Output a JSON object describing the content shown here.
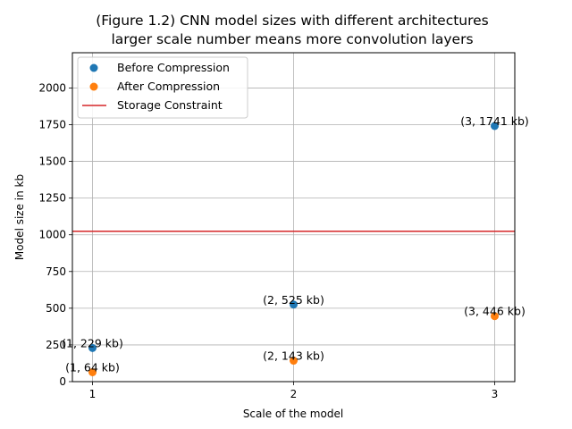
{
  "chart_data": {
    "type": "scatter",
    "title_line1": "(Figure 1.2) CNN model sizes with different architectures",
    "title_line2": "larger scale number means more convolution layers",
    "xlabel": "Scale of the model",
    "ylabel": "Model size in kb",
    "xlim": [
      0.9,
      3.1
    ],
    "ylim": [
      0,
      2240
    ],
    "xticks": [
      1,
      2,
      3
    ],
    "yticks": [
      0,
      250,
      500,
      750,
      1000,
      1250,
      1500,
      1750,
      2000
    ],
    "grid": true,
    "legend_position": "top-left",
    "series": [
      {
        "name": "Before Compression",
        "color": "#1f77b4",
        "x": [
          1,
          2,
          3
        ],
        "y": [
          229,
          525,
          1741
        ],
        "labels": [
          "(1, 229 kb)",
          "(2, 525 kb)",
          "(3, 1741 kb)"
        ]
      },
      {
        "name": "After Compression",
        "color": "#ff7f0e",
        "x": [
          1,
          2,
          3
        ],
        "y": [
          64,
          143,
          446
        ],
        "labels": [
          "(1, 64 kb)",
          "(2, 143 kb)",
          "(3, 446 kb)"
        ]
      }
    ],
    "constraint": {
      "name": "Storage Constraint",
      "color": "#d62728",
      "y": 1024
    }
  }
}
